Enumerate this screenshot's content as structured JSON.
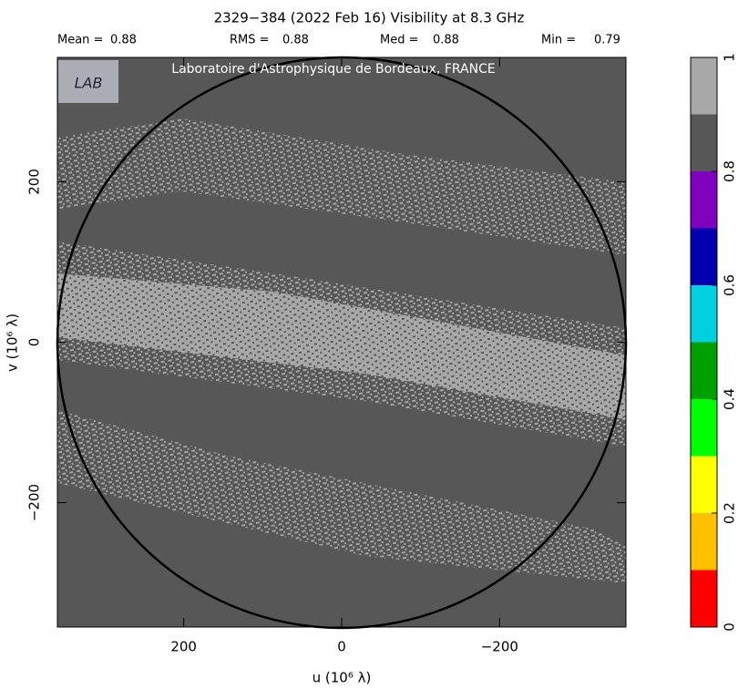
{
  "chart_data": {
    "type": "image-map",
    "title": "2329−384  (2022 Feb 16)   Visibility at  8.3 GHz",
    "stats": [
      {
        "label": "Mean =",
        "value": 0.88
      },
      {
        "label": "RMS =",
        "value": 0.88
      },
      {
        "label": "Med =",
        "value": 0.88
      },
      {
        "label": "Min =",
        "value": 0.79
      }
    ],
    "watermark": "Laboratoire d'Astrophysique de Bordeaux, FRANCE",
    "x_label": "u  (10⁶ λ)",
    "y_label": "v  (10⁶ λ)",
    "xlim": [
      360,
      -360
    ],
    "xticks": [
      200,
      0,
      {
        "value": -200,
        "label": "−200"
      }
    ],
    "ylim": [
      -355,
      355
    ],
    "yticks": [
      {
        "value": -200,
        "label": "−200"
      },
      0,
      200
    ],
    "colorbar": {
      "lim": [
        0,
        1
      ],
      "ticks": [
        0,
        0.2,
        0.4,
        0.6,
        0.8,
        1
      ],
      "bins": [
        0,
        0.1,
        0.2,
        0.3,
        0.4,
        0.5,
        0.6,
        0.7,
        0.8,
        0.9,
        1
      ],
      "colors": [
        "#ff0000",
        "#ffc000",
        "#ffff00",
        "#00ff00",
        "#00a000",
        "#00d0e0",
        "#0000b0",
        "#8000c0",
        "#575757",
        "#a8a8a8"
      ]
    }
  }
}
